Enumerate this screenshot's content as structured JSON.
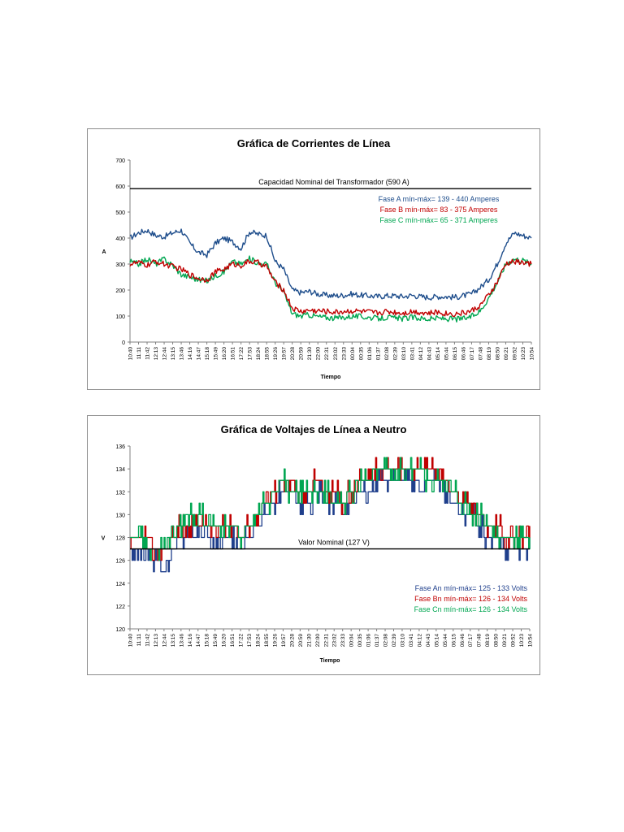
{
  "chart_data": [
    {
      "type": "line",
      "title": "Gráfica de Corrientes de Línea",
      "xlabel": "Tiempo",
      "ylabel": "A",
      "ylim": [
        0,
        700
      ],
      "yticks": [
        0,
        100,
        200,
        300,
        400,
        500,
        600,
        700
      ],
      "categories": [
        "10:40",
        "11:11",
        "11:42",
        "12:13",
        "12:44",
        "13:15",
        "13:46",
        "14:16",
        "14:47",
        "15:18",
        "15:49",
        "16:20",
        "16:51",
        "17:22",
        "17:53",
        "18:24",
        "18:55",
        "19:26",
        "19:57",
        "20:28",
        "20:59",
        "21:30",
        "22:00",
        "22:31",
        "23:02",
        "23:33",
        "00:04",
        "00:35",
        "01:06",
        "01:37",
        "02:08",
        "02:39",
        "03:10",
        "03:41",
        "04:12",
        "04:43",
        "05:14",
        "05:44",
        "06:15",
        "06:46",
        "07:17",
        "07:48",
        "08:19",
        "08:50",
        "09:21",
        "09:52",
        "10:23",
        "10:54"
      ],
      "reference_line": {
        "value": 590,
        "label": "Capacidad Nominal del Transformador (590 A)",
        "color": "#000000"
      },
      "series": [
        {
          "name": "Fase A mín-máx= 139 - 440  Amperes",
          "color": "#1f4e8c",
          "values": [
            400,
            420,
            430,
            410,
            405,
            420,
            430,
            380,
            345,
            335,
            380,
            400,
            385,
            360,
            425,
            415,
            410,
            310,
            280,
            200,
            190,
            195,
            185,
            180,
            178,
            180,
            185,
            180,
            178,
            175,
            178,
            178,
            175,
            180,
            175,
            172,
            175,
            175,
            172,
            178,
            185,
            210,
            240,
            300,
            380,
            420,
            410,
            400
          ]
        },
        {
          "name": "Fase B mín-máx= 83 - 375  Amperes",
          "color": "#c00000",
          "values": [
            300,
            305,
            295,
            310,
            300,
            290,
            280,
            260,
            245,
            240,
            270,
            280,
            300,
            295,
            310,
            305,
            290,
            230,
            200,
            130,
            118,
            122,
            120,
            118,
            115,
            118,
            120,
            118,
            115,
            112,
            118,
            115,
            112,
            118,
            115,
            110,
            115,
            110,
            108,
            112,
            120,
            140,
            180,
            230,
            300,
            310,
            305,
            300
          ]
        },
        {
          "name": "Fase C mín-máx= 65 - 371  Amperes",
          "color": "#00a651",
          "values": [
            310,
            300,
            320,
            300,
            320,
            295,
            260,
            250,
            240,
            235,
            255,
            270,
            310,
            300,
            320,
            305,
            300,
            230,
            190,
            110,
            100,
            105,
            98,
            95,
            92,
            95,
            100,
            98,
            95,
            90,
            95,
            92,
            90,
            95,
            92,
            88,
            92,
            90,
            88,
            90,
            98,
            120,
            170,
            230,
            300,
            320,
            315,
            300
          ]
        }
      ]
    },
    {
      "type": "line",
      "title": "Gráfica de Voltajes de Línea a Neutro",
      "xlabel": "Tiempo",
      "ylabel": "V",
      "ylim": [
        120,
        136
      ],
      "yticks": [
        120,
        122,
        124,
        126,
        128,
        130,
        132,
        134,
        136
      ],
      "categories": [
        "10:40",
        "11:11",
        "11:42",
        "12:13",
        "12:44",
        "13:15",
        "13:46",
        "14:16",
        "14:47",
        "15:18",
        "15:49",
        "16:20",
        "16:51",
        "17:22",
        "17:53",
        "18:24",
        "18:55",
        "19:26",
        "19:57",
        "20:28",
        "20:59",
        "21:30",
        "22:00",
        "22:31",
        "23:02",
        "23:33",
        "00:04",
        "00:35",
        "01:06",
        "01:37",
        "02:08",
        "02:39",
        "03:10",
        "03:41",
        "04:12",
        "04:43",
        "05:14",
        "05:44",
        "06:15",
        "06:46",
        "07:17",
        "07:48",
        "08:19",
        "08:50",
        "09:21",
        "09:52",
        "10:23",
        "10:54"
      ],
      "reference_line": {
        "value": 127,
        "label": "Valor Nominal (127 V)",
        "color": "#000000"
      },
      "series": [
        {
          "name": "Fase An mín-máx= 125 - 133 Volts",
          "color": "#1f3f8c",
          "values": [
            127,
            127,
            126,
            126,
            125,
            127,
            128,
            128,
            128,
            128,
            128,
            128,
            128,
            127,
            128,
            129,
            130,
            131,
            132,
            132,
            131,
            131,
            132,
            131,
            131,
            130,
            131,
            132,
            132,
            133,
            133,
            133,
            133,
            133,
            133,
            133,
            133,
            132,
            131,
            130,
            130,
            129,
            128,
            128,
            127,
            127,
            127,
            127
          ]
        },
        {
          "name": "Fase Bn mín-máx= 126 - 134 Volts",
          "color": "#c00000",
          "values": [
            128,
            128,
            128,
            127,
            127,
            128,
            129,
            129,
            129,
            129,
            129,
            129,
            129,
            128,
            129,
            130,
            131,
            132,
            133,
            133,
            132,
            132,
            133,
            132,
            132,
            131,
            132,
            133,
            133,
            134,
            134,
            134,
            134,
            134,
            134,
            134,
            134,
            133,
            132,
            131,
            131,
            130,
            129,
            129,
            128,
            128,
            128,
            129
          ]
        },
        {
          "name": "Fase Cn mín-máx= 126 - 134 Volts",
          "color": "#00a651",
          "values": [
            128,
            128,
            127,
            127,
            127,
            128,
            129,
            130,
            130,
            129,
            129,
            129,
            129,
            128,
            129,
            130,
            131,
            132,
            133,
            132,
            132,
            132,
            132,
            132,
            131,
            131,
            132,
            133,
            133,
            134,
            134,
            133,
            134,
            134,
            134,
            133,
            133,
            133,
            132,
            131,
            130,
            130,
            129,
            128,
            128,
            128,
            128,
            128
          ]
        }
      ]
    }
  ]
}
